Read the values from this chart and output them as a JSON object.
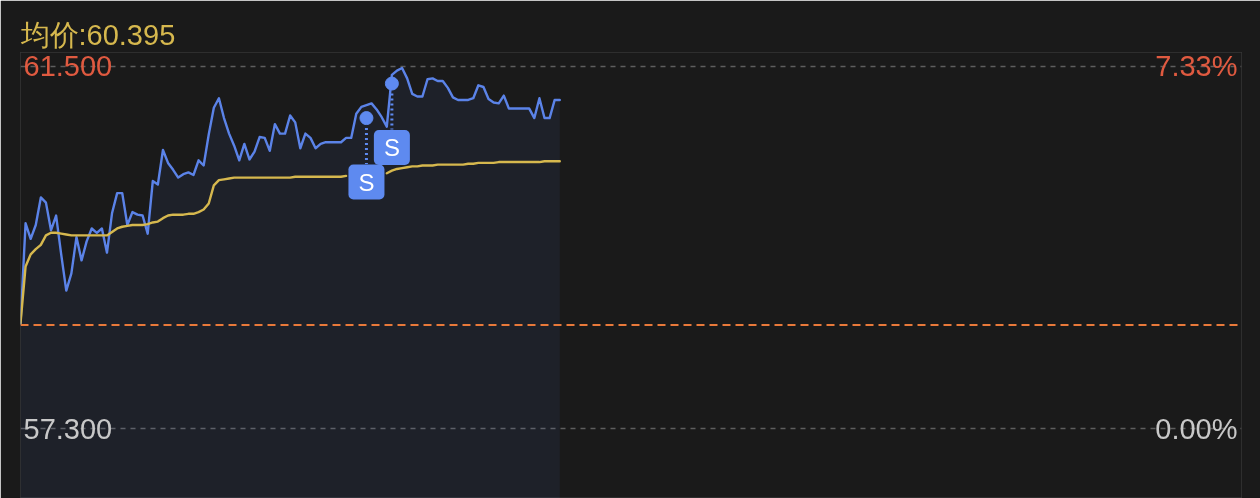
{
  "chart_data": {
    "type": "area",
    "ylim": [
      56.49,
      61.66
    ],
    "yticks": [
      {
        "value": 61.5,
        "label": "61.500"
      },
      {
        "value": 57.3,
        "label": "57.300"
      }
    ],
    "y2lim": [
      -1.41,
      7.61
    ],
    "y2ticks": [
      {
        "value": 7.33,
        "label": "7.33%"
      },
      {
        "value": 0,
        "label": "0.00%"
      }
    ],
    "grid": "y",
    "tick_labels": "y",
    "ref_lines": [
      {
        "axis": "y",
        "value": 58.5,
        "color": "#e8793a",
        "line_style": "dashed"
      }
    ],
    "categories": [
      null,
      null,
      null,
      null,
      null,
      null,
      null,
      null,
      null,
      null,
      null,
      null,
      null,
      null,
      null,
      null,
      null,
      null,
      null,
      null,
      null,
      null,
      null,
      null,
      null,
      null,
      null,
      null,
      null,
      null,
      null,
      null,
      null,
      null,
      null,
      null,
      null,
      null,
      null,
      null,
      null,
      null,
      null,
      null,
      null,
      null,
      null,
      null,
      null,
      null,
      null,
      null,
      null,
      null,
      null,
      null,
      null,
      null,
      null,
      null,
      null,
      null,
      null,
      null,
      null,
      null,
      null,
      null,
      null,
      null,
      null,
      null,
      null,
      null,
      null,
      null,
      null,
      null,
      null,
      null,
      null,
      null,
      null,
      null,
      null,
      null,
      null,
      null,
      null,
      null,
      null,
      null,
      null,
      null,
      null,
      null,
      null,
      null,
      null,
      null,
      null,
      null,
      null,
      null,
      null,
      null,
      null,
      null,
      null,
      null,
      null,
      null,
      null,
      null,
      null,
      null,
      null,
      null,
      null,
      null,
      null,
      null,
      null,
      null,
      null,
      null,
      null,
      null,
      null,
      null,
      null,
      null,
      null,
      null,
      null,
      null,
      null,
      null,
      null,
      null,
      null,
      null,
      null,
      null,
      null,
      null,
      null,
      null,
      null,
      null,
      null,
      null,
      null,
      null,
      null,
      null,
      null,
      null,
      null,
      null,
      null,
      null,
      null,
      null,
      null,
      null,
      null,
      null,
      null,
      null,
      null,
      null,
      null,
      null,
      null,
      null,
      null,
      null,
      null,
      null,
      null,
      null,
      null,
      null,
      null,
      null,
      null,
      null,
      null,
      null,
      null,
      null,
      null,
      null,
      null,
      null,
      null,
      null,
      null,
      null,
      null,
      null,
      null,
      null,
      null,
      null,
      null,
      null,
      null,
      null,
      null,
      null,
      null,
      null,
      null,
      null,
      null,
      null,
      null,
      null,
      null,
      null,
      null,
      null,
      null,
      null,
      null,
      null,
      null,
      null,
      null,
      null,
      null,
      null,
      null,
      null,
      null,
      null,
      null,
      null,
      null
    ],
    "series": [
      {
        "color": "#5b83e8",
        "values": [
          58.52,
          59.68,
          59.5,
          59.66,
          59.98,
          59.92,
          59.6,
          59.77,
          59.32,
          58.9,
          59.1,
          59.52,
          59.25,
          59.47,
          59.62,
          59.57,
          59.62,
          59.34,
          59.8,
          60.03,
          60.03,
          59.66,
          59.81,
          59.78,
          59.77,
          59.56,
          60.17,
          60.13,
          60.53,
          60.38,
          60.3,
          60.21,
          60.25,
          60.27,
          60.24,
          60.41,
          60.35,
          60.71,
          61.02,
          61.13,
          60.9,
          60.72,
          60.58,
          60.41,
          60.6,
          60.42,
          60.51,
          60.68,
          60.67,
          60.52,
          60.83,
          60.72,
          60.72,
          60.93,
          60.85,
          60.55,
          60.72,
          60.67,
          60.55,
          60.6,
          60.62,
          60.62,
          60.62,
          60.62,
          60.67,
          60.67,
          60.95,
          61.03,
          61.05,
          61.07,
          61.0,
          60.91,
          60.8,
          61.4,
          61.45,
          61.48,
          61.36,
          61.18,
          61.15,
          61.15,
          61.35,
          61.36,
          61.33,
          61.33,
          61.25,
          61.14,
          61.11,
          61.11,
          61.11,
          61.13,
          61.28,
          61.26,
          61.12,
          61.08,
          61.07,
          61.16,
          61.01,
          61.01,
          61.01,
          61.01,
          61.01,
          60.9,
          61.13,
          60.9,
          60.9,
          61.11,
          61.11,
          null,
          null,
          null,
          null,
          null,
          null,
          null,
          null,
          null,
          null,
          null,
          null,
          null,
          null,
          null,
          null,
          null,
          null,
          null,
          null,
          null,
          null,
          null,
          null,
          null,
          null,
          null,
          null,
          null,
          null,
          null,
          null,
          null,
          null,
          null,
          null,
          null,
          null,
          null,
          null,
          null,
          null,
          null,
          null,
          null,
          null,
          null,
          null,
          null,
          null,
          null,
          null,
          null,
          null,
          null,
          null,
          null,
          null,
          null,
          null,
          null,
          null,
          null,
          null,
          null,
          null,
          null,
          null,
          null,
          null,
          null,
          null,
          null,
          null,
          null,
          null,
          null,
          null,
          null,
          null,
          null,
          null,
          null,
          null,
          null,
          null,
          null,
          null,
          null,
          null,
          null,
          null,
          null,
          null,
          null,
          null,
          null,
          null,
          null,
          null,
          null,
          null,
          null,
          null,
          null,
          null,
          null,
          null,
          null,
          null,
          null,
          null,
          null,
          null,
          null,
          null,
          null,
          null,
          null,
          null,
          null,
          null,
          null,
          null,
          null,
          null,
          null,
          null,
          null,
          null,
          null,
          null,
          null,
          null
        ]
      },
      {
        "type": "line",
        "name": "均价:60.395",
        "color": "#d6b84e",
        "values": [
          58.52,
          59.18,
          59.32,
          59.38,
          59.43,
          59.54,
          59.57,
          59.57,
          59.56,
          59.55,
          59.54,
          59.54,
          59.54,
          59.54,
          59.54,
          59.54,
          59.54,
          59.54,
          59.58,
          59.62,
          59.64,
          59.65,
          59.66,
          59.66,
          59.66,
          59.67,
          59.69,
          59.7,
          59.74,
          59.77,
          59.78,
          59.78,
          59.78,
          59.79,
          59.79,
          59.81,
          59.84,
          59.91,
          60.12,
          60.18,
          60.19,
          60.2,
          60.21,
          60.21,
          60.21,
          60.21,
          60.21,
          60.21,
          60.21,
          60.21,
          60.21,
          60.21,
          60.21,
          60.21,
          60.22,
          60.22,
          60.22,
          60.22,
          60.22,
          60.22,
          60.22,
          60.22,
          60.22,
          60.22,
          60.23,
          null,
          null,
          null,
          null,
          null,
          null,
          null,
          60.26,
          60.29,
          60.31,
          60.32,
          60.33,
          60.34,
          60.34,
          60.35,
          60.35,
          60.35,
          60.36,
          60.36,
          60.36,
          60.36,
          60.36,
          60.36,
          60.37,
          60.37,
          60.38,
          60.38,
          60.38,
          60.38,
          60.39,
          60.39,
          60.39,
          60.39,
          60.39,
          60.39,
          60.39,
          60.39,
          60.39,
          60.4,
          60.4,
          60.4,
          60.4,
          null,
          null,
          null,
          null,
          null,
          null,
          null,
          null,
          null,
          null,
          null,
          null,
          null,
          null,
          null,
          null,
          null,
          null,
          null,
          null,
          null,
          null,
          null,
          null,
          null,
          null,
          null,
          null,
          null,
          null,
          null,
          null,
          null,
          null,
          null,
          null,
          null,
          null,
          null,
          null,
          null,
          null,
          null,
          null,
          null,
          null,
          null,
          null,
          null,
          null,
          null,
          null,
          null,
          null,
          null,
          null,
          null,
          null,
          null,
          null,
          null,
          null,
          null,
          null,
          null,
          null,
          null,
          null,
          null,
          null,
          null,
          null,
          null,
          null,
          null,
          null,
          null,
          null,
          null,
          null,
          null,
          null,
          null,
          null,
          null,
          null,
          null,
          null,
          null,
          null,
          null,
          null,
          null,
          null,
          null,
          null,
          null,
          null,
          null,
          null,
          null,
          null,
          null,
          null,
          null,
          null,
          null,
          null,
          null,
          null,
          null,
          null,
          null,
          null,
          null,
          null,
          null,
          null,
          null,
          null,
          null,
          null,
          null,
          null,
          null,
          null,
          null,
          null,
          null,
          null,
          null,
          null,
          null,
          null
        ]
      },
      {
        "type": "scatter",
        "color": "#5e8af0",
        "marker": "circle",
        "values": [
          null,
          null,
          null,
          null,
          null,
          null,
          null,
          null,
          null,
          null,
          null,
          null,
          null,
          null,
          null,
          null,
          null,
          null,
          null,
          null,
          null,
          null,
          null,
          null,
          null,
          null,
          null,
          null,
          null,
          null,
          null,
          null,
          null,
          null,
          null,
          null,
          null,
          null,
          null,
          null,
          null,
          null,
          null,
          null,
          null,
          null,
          null,
          null,
          null,
          null,
          null,
          null,
          null,
          null,
          null,
          null,
          null,
          null,
          null,
          null,
          null,
          null,
          null,
          null,
          null,
          null,
          null,
          null,
          60.9,
          null,
          null,
          null,
          null,
          61.3,
          null,
          null,
          null,
          null,
          null,
          null,
          null,
          null,
          null,
          null,
          null,
          null,
          null,
          null,
          null,
          null,
          null,
          null,
          null,
          null,
          null,
          null,
          null,
          null,
          null,
          null,
          null,
          null,
          null,
          null,
          null,
          null,
          null,
          null,
          null,
          null,
          null,
          null,
          null,
          null,
          null,
          null,
          null,
          null,
          null,
          null,
          null,
          null,
          null,
          null,
          null,
          null,
          null,
          null,
          null,
          null,
          null,
          null,
          null,
          null,
          null,
          null,
          null,
          null,
          null,
          null,
          null,
          null,
          null,
          null,
          null,
          null,
          null,
          null,
          null,
          null,
          null,
          null,
          null,
          null,
          null,
          null,
          null,
          null,
          null,
          null,
          null,
          null,
          null,
          null,
          null,
          null,
          null,
          null,
          null,
          null,
          null,
          null,
          null,
          null,
          null,
          null,
          null,
          null,
          null,
          null,
          null,
          null,
          null,
          null,
          null,
          null,
          null,
          null,
          null,
          null,
          null,
          null,
          null,
          null,
          null,
          null,
          null,
          null,
          null,
          null,
          null,
          null,
          null,
          null,
          null,
          null,
          null,
          null,
          null,
          null,
          null,
          null,
          null,
          null,
          null,
          null,
          null,
          null,
          null,
          null,
          null,
          null,
          null,
          null,
          null,
          null,
          null,
          null,
          null,
          null,
          null,
          null,
          null,
          null,
          null,
          null,
          null,
          null,
          null,
          null,
          null
        ],
        "value_labels": [
          null,
          null,
          null,
          null,
          null,
          null,
          null,
          null,
          null,
          null,
          null,
          null,
          null,
          null,
          null,
          null,
          null,
          null,
          null,
          null,
          null,
          null,
          null,
          null,
          null,
          null,
          null,
          null,
          null,
          null,
          null,
          null,
          null,
          null,
          null,
          null,
          null,
          null,
          null,
          null,
          null,
          null,
          null,
          null,
          null,
          null,
          null,
          null,
          null,
          null,
          null,
          null,
          null,
          null,
          null,
          null,
          null,
          null,
          null,
          null,
          null,
          null,
          null,
          null,
          null,
          null,
          null,
          null,
          "S",
          null,
          null,
          null,
          null,
          "S",
          null,
          null,
          null,
          null,
          null,
          null,
          null,
          null,
          null,
          null,
          null,
          null,
          null,
          null,
          null,
          null,
          null,
          null,
          null,
          null,
          null,
          null,
          null,
          null,
          null,
          null,
          null,
          null,
          null,
          null,
          null,
          null,
          null,
          null,
          null,
          null,
          null,
          null,
          null,
          null,
          null,
          null,
          null,
          null,
          null,
          null,
          null,
          null,
          null,
          null,
          null,
          null,
          null,
          null,
          null,
          null,
          null,
          null,
          null,
          null,
          null,
          null,
          null,
          null,
          null,
          null,
          null,
          null,
          null,
          null,
          null,
          null,
          null,
          null,
          null,
          null,
          null,
          null,
          null,
          null,
          null,
          null,
          null,
          null,
          null,
          null,
          null,
          null,
          null,
          null,
          null,
          null,
          null,
          null,
          null,
          null,
          null,
          null,
          null,
          null,
          null,
          null,
          null,
          null,
          null,
          null,
          null,
          null,
          null,
          null,
          null,
          null,
          null,
          null,
          null,
          null,
          null,
          null,
          null,
          null,
          null,
          null,
          null,
          null,
          null,
          null,
          null,
          null,
          null,
          null,
          null,
          null,
          null,
          null,
          null,
          null,
          null,
          null,
          null,
          null,
          null,
          null,
          null,
          null,
          null,
          null,
          null,
          null,
          null,
          null,
          null,
          null,
          null,
          null,
          null,
          null,
          null,
          null,
          null,
          null,
          null,
          null,
          null,
          null,
          null,
          null,
          null
        ]
      }
    ]
  }
}
